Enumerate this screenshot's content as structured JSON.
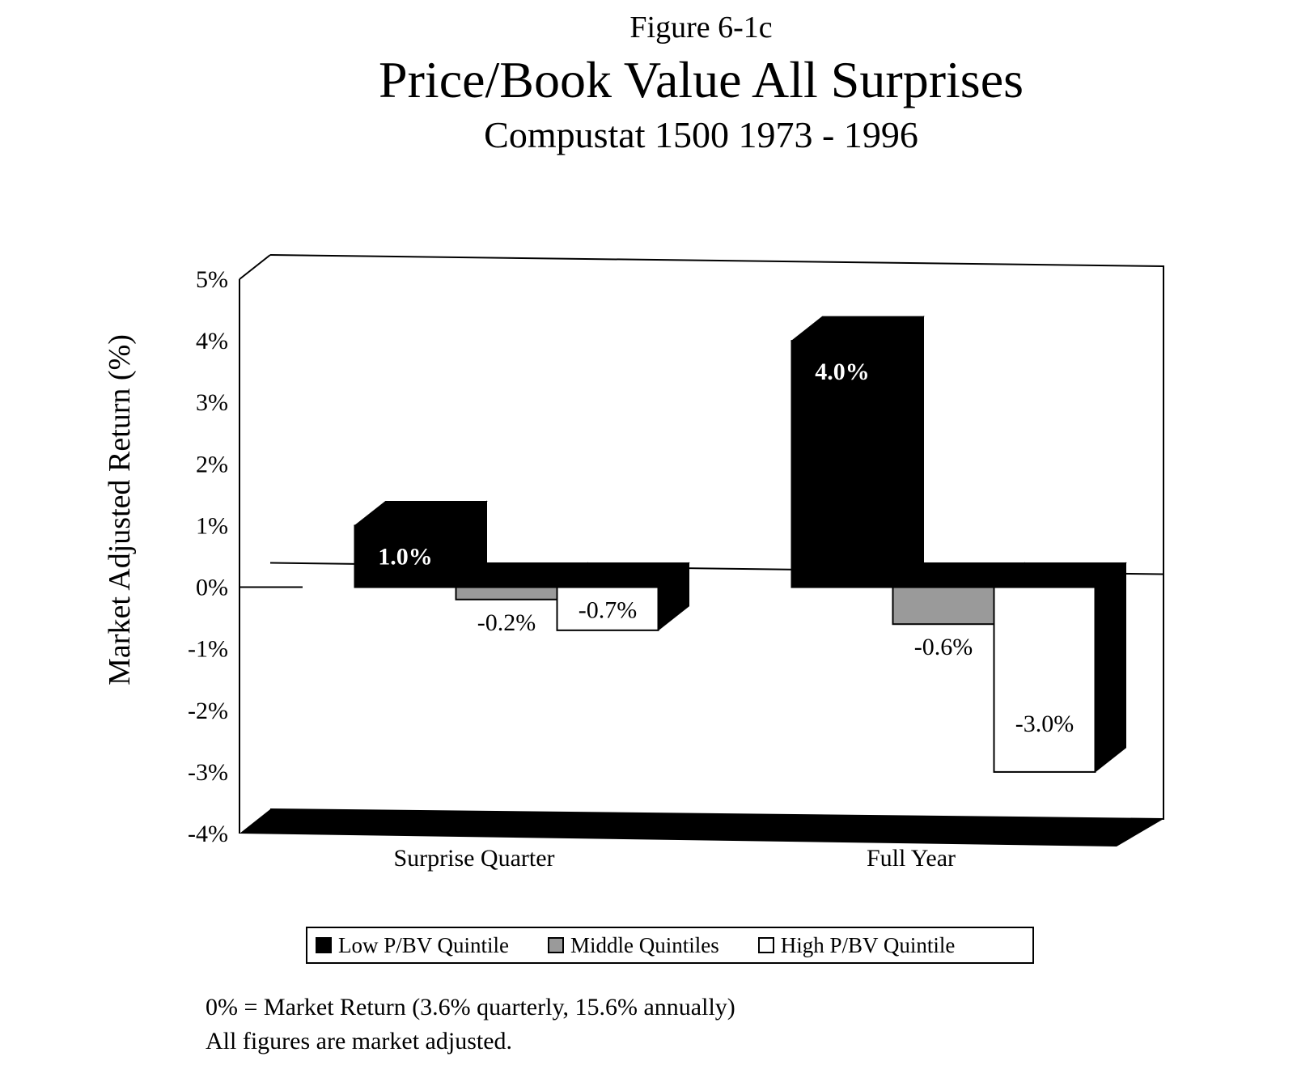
{
  "figure_label": "Figure 6-1c",
  "chart_data": {
    "type": "bar",
    "title": "Price/Book Value  All Surprises",
    "subtitle": "Compustat 1500 1973 - 1996",
    "ylabel": "Market Adjusted Return (%)",
    "xlabel": "",
    "ylim": [
      -4,
      5
    ],
    "yticks": [
      "5%",
      "4%",
      "3%",
      "2%",
      "1%",
      "0%",
      "-1%",
      "-2%",
      "-3%",
      "-4%"
    ],
    "categories": [
      "Surprise Quarter",
      "Full Year"
    ],
    "series": [
      {
        "name": "Low P/BV Quintile",
        "values": [
          1.0,
          4.0
        ],
        "labels": [
          "1.0%",
          "4.0%"
        ],
        "color": "#000000"
      },
      {
        "name": "Middle Quintiles",
        "values": [
          -0.2,
          -0.6
        ],
        "labels": [
          "-0.2%",
          "-0.6%"
        ],
        "color": "#9a9a9a"
      },
      {
        "name": "High P/BV Quintile",
        "values": [
          -0.7,
          -3.0
        ],
        "labels": [
          "-0.7%",
          "-3.0%"
        ],
        "color": "#ffffff"
      }
    ],
    "legend_position": "bottom",
    "style": "3d"
  },
  "footnotes": [
    "0% = Market Return (3.6% quarterly, 15.6% annually)",
    "All figures are market adjusted."
  ]
}
